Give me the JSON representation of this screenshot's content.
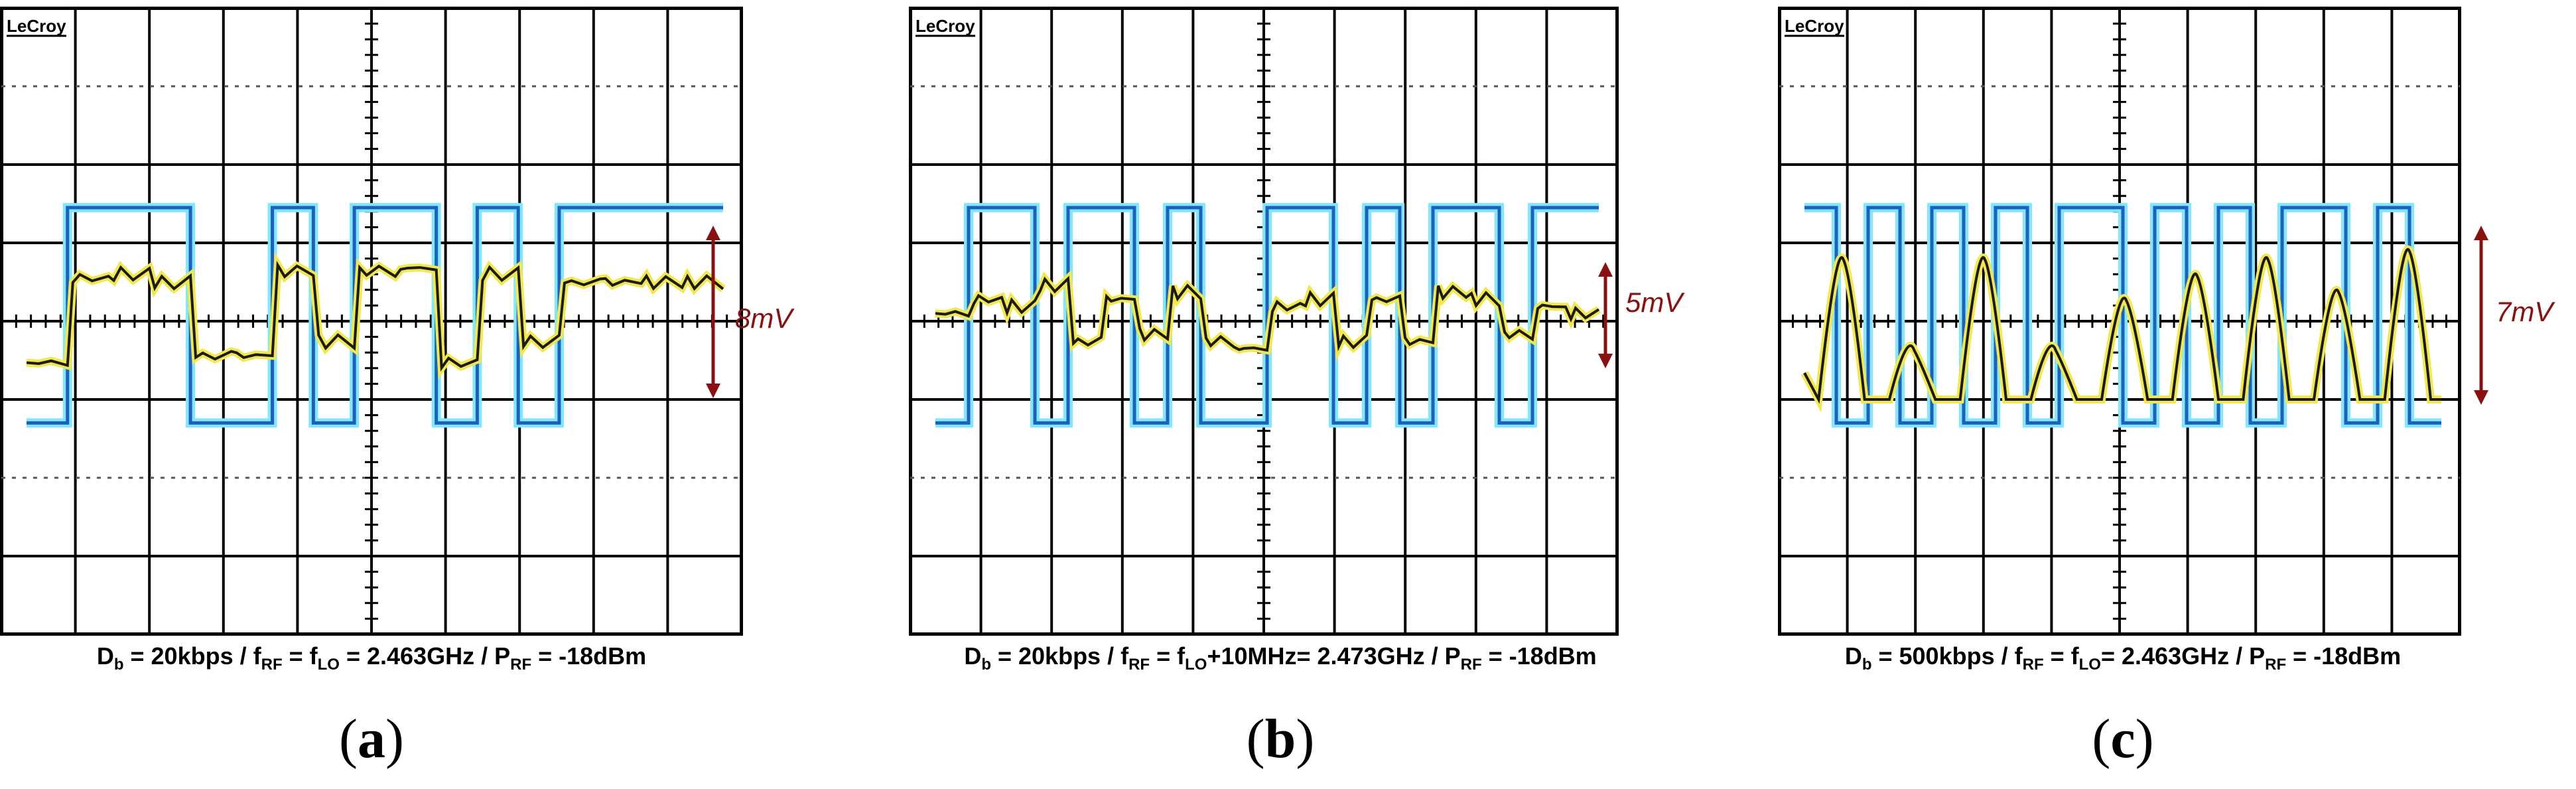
{
  "chart_data": [
    {
      "type": "line",
      "panel_label": "a",
      "scope_brand": "LeCroy",
      "caption": {
        "Db": "20kbps",
        "fRF_eq": "f",
        "fRF_rest": "2.463GHz",
        "PRF": "-18dBm"
      },
      "amplitude_annotation": "8mV",
      "digital_bits": [
        0,
        1,
        1,
        1,
        0,
        0,
        1,
        0,
        1,
        1,
        0,
        1,
        0,
        1,
        1,
        1,
        1
      ],
      "analog_levels": [
        0.15,
        0.75,
        0.78,
        0.72,
        0.2,
        0.2,
        0.8,
        0.3,
        0.8,
        0.82,
        0.15,
        0.78,
        0.3,
        0.72,
        0.72,
        0.72,
        0.72
      ]
    },
    {
      "type": "line",
      "panel_label": "b",
      "scope_brand": "LeCroy",
      "caption": {
        "Db": "20kbps",
        "fRF_rest": "f",
        "fLO_rest": "+10MHz= 2.473GHz",
        "PRF": "-18dBm"
      },
      "amplitude_annotation": "5mV",
      "digital_bits": [
        0,
        1,
        1,
        0,
        1,
        1,
        0,
        1,
        0,
        0,
        1,
        1,
        0,
        1,
        0,
        1,
        1,
        0,
        1,
        1
      ],
      "analog_levels": [
        0.5,
        0.6,
        0.55,
        0.7,
        0.3,
        0.6,
        0.35,
        0.65,
        0.3,
        0.25,
        0.55,
        0.6,
        0.3,
        0.6,
        0.3,
        0.65,
        0.6,
        0.35,
        0.55,
        0.5
      ]
    },
    {
      "type": "line",
      "panel_label": "c",
      "scope_brand": "LeCroy",
      "caption": {
        "Db": "500kbps",
        "fRF_eq": "f",
        "fLO_rest": "2.463GHz",
        "PRF": "-18dBm"
      },
      "amplitude_annotation": "7mV",
      "pulse_peaks": [
        0.85,
        0.3,
        0.85,
        0.3,
        0.6,
        0.75,
        0.85,
        0.65,
        0.9
      ],
      "digital_bits": [
        1,
        0,
        1,
        0,
        1,
        0,
        1,
        0,
        1,
        1,
        0,
        1,
        0,
        1,
        0,
        1,
        1,
        0,
        1,
        0
      ]
    }
  ],
  "labels": {
    "a": "(a)",
    "b": "(b)",
    "c": "(c)"
  }
}
